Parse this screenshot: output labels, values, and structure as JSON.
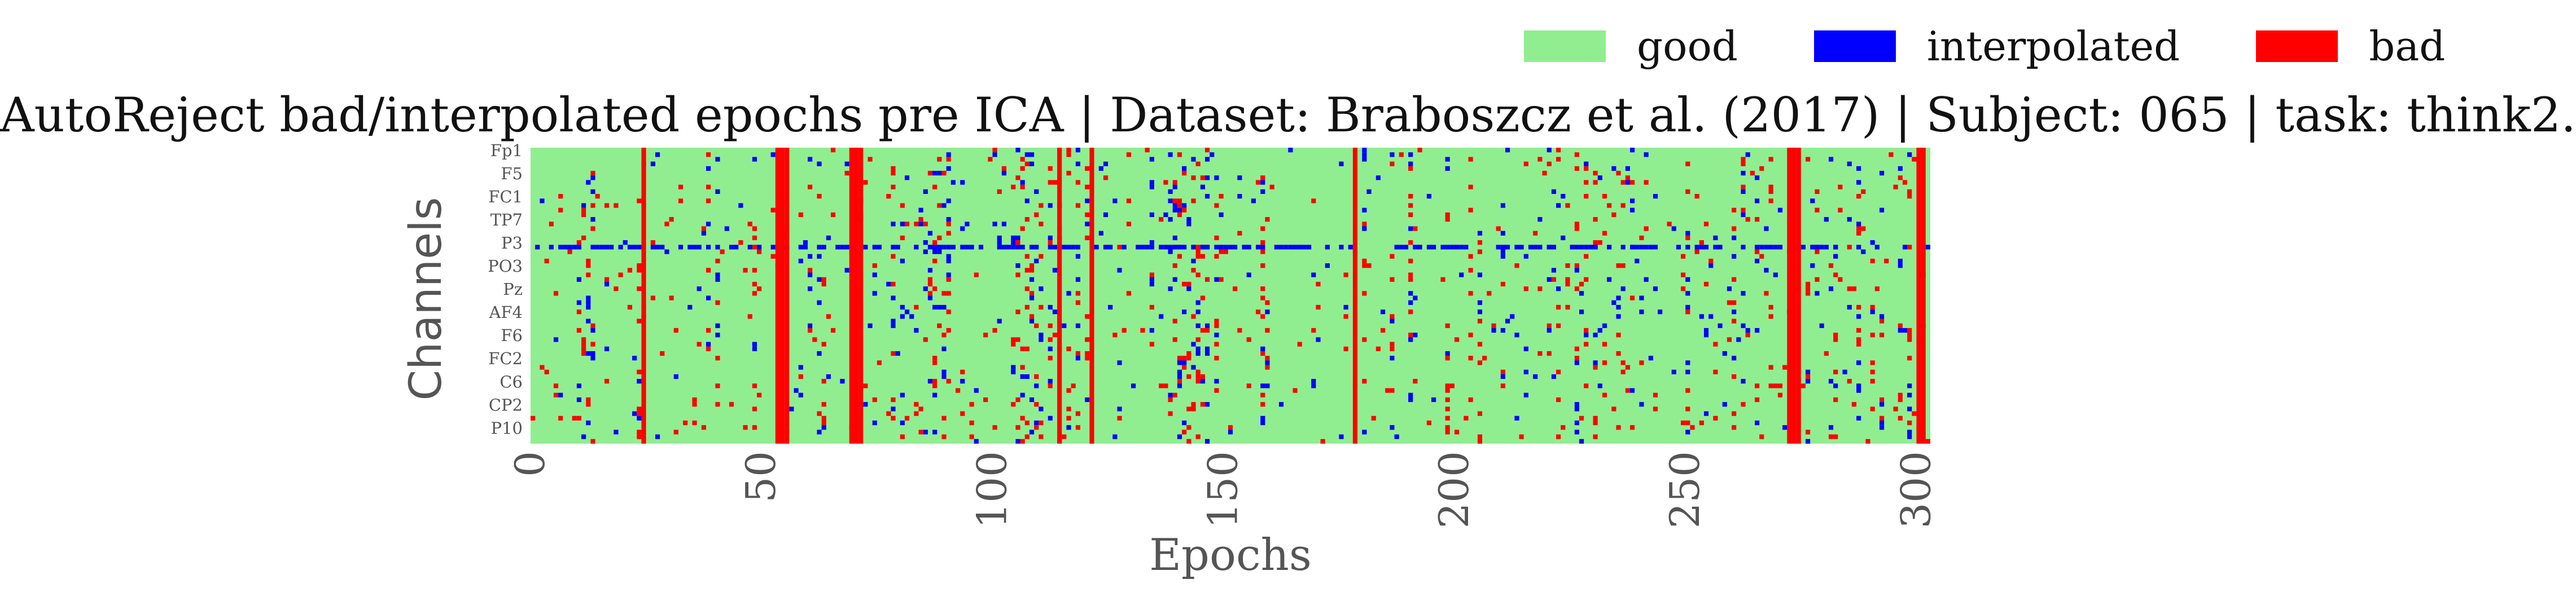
{
  "chart_data": {
    "type": "heatmap",
    "title": "AutoReject bad/interpolated epochs pre ICA | Dataset: Braboszcz et al. (2017) | Subject: 065 | task: think2.",
    "xlabel": "Epochs",
    "ylabel": "Channels",
    "n_epochs": 303,
    "n_channels": 64,
    "x_ticks": [
      0,
      50,
      100,
      150,
      200,
      250,
      300
    ],
    "y_tick_labels": [
      "Fp1",
      "F5",
      "FC1",
      "TP7",
      "P3",
      "PO3",
      "Pz",
      "AF4",
      "F6",
      "FC2",
      "C6",
      "CP2",
      "P10"
    ],
    "legend": [
      {
        "label": "good",
        "color": "#90ee90"
      },
      {
        "label": "interpolated",
        "color": "#0000ff"
      },
      {
        "label": "bad",
        "color": "#ff0000"
      }
    ],
    "legend_placement": "top-right",
    "colors": {
      "good": "#90ee90",
      "interpolated": "#0000ff",
      "bad": "#ff0000"
    },
    "bad_epochs": [
      24,
      53,
      54,
      55,
      69,
      70,
      71,
      114,
      121,
      178,
      272,
      273,
      274,
      300,
      301
    ],
    "interpolated_channel_rows": [
      21
    ]
  }
}
